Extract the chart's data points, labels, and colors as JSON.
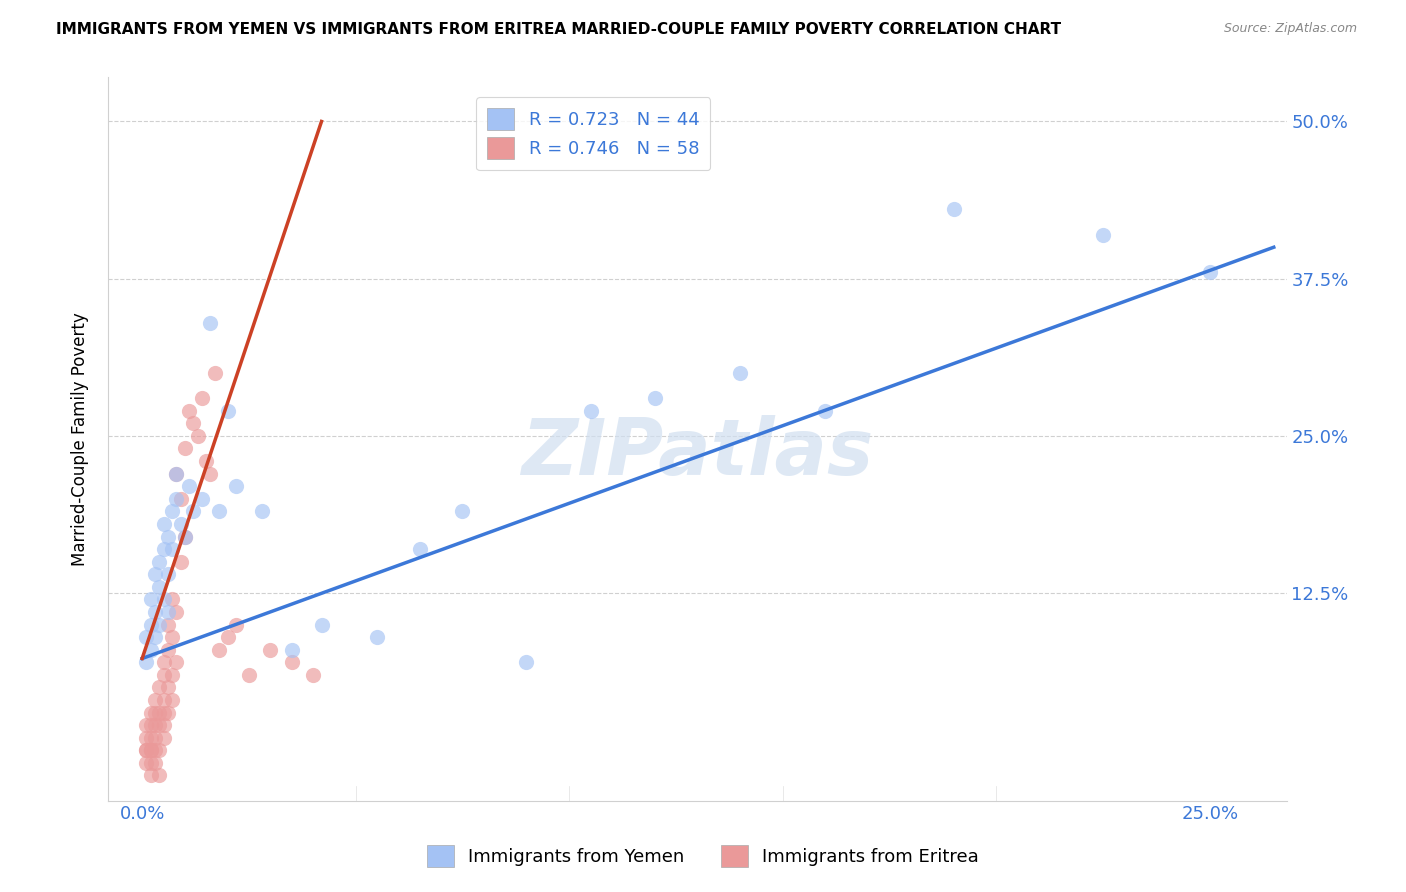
{
  "title": "IMMIGRANTS FROM YEMEN VS IMMIGRANTS FROM ERITREA MARRIED-COUPLE FAMILY POVERTY CORRELATION CHART",
  "source": "Source: ZipAtlas.com",
  "ylabel": "Married-Couple Family Poverty",
  "ytick_labels": [
    "12.5%",
    "25.0%",
    "37.5%",
    "50.0%"
  ],
  "ytick_values": [
    0.125,
    0.25,
    0.375,
    0.5
  ],
  "xtick_show": [
    0.0,
    0.25
  ],
  "xtick_labels_show": [
    "0.0%",
    "25.0%"
  ],
  "xlim": [
    -0.008,
    0.268
  ],
  "ylim": [
    -0.04,
    0.535
  ],
  "watermark": "ZIPatlas",
  "legend_blue_label": "R = 0.723   N = 44",
  "legend_pink_label": "R = 0.746   N = 58",
  "legend_bottom_blue": "Immigrants from Yemen",
  "legend_bottom_pink": "Immigrants from Eritrea",
  "blue_color": "#a4c2f4",
  "pink_color": "#ea9999",
  "blue_line_color": "#3c78d8",
  "pink_line_color": "#cc4125",
  "scatter_alpha": 0.65,
  "scatter_size": 120,
  "yemen_x": [
    0.001,
    0.001,
    0.002,
    0.002,
    0.002,
    0.003,
    0.003,
    0.003,
    0.004,
    0.004,
    0.004,
    0.005,
    0.005,
    0.005,
    0.006,
    0.006,
    0.006,
    0.007,
    0.007,
    0.008,
    0.008,
    0.009,
    0.01,
    0.011,
    0.012,
    0.014,
    0.016,
    0.018,
    0.02,
    0.022,
    0.028,
    0.035,
    0.042,
    0.055,
    0.065,
    0.075,
    0.09,
    0.105,
    0.12,
    0.14,
    0.16,
    0.19,
    0.225,
    0.25
  ],
  "yemen_y": [
    0.07,
    0.09,
    0.1,
    0.08,
    0.12,
    0.11,
    0.14,
    0.09,
    0.13,
    0.15,
    0.1,
    0.16,
    0.12,
    0.18,
    0.14,
    0.17,
    0.11,
    0.19,
    0.16,
    0.2,
    0.22,
    0.18,
    0.17,
    0.21,
    0.19,
    0.2,
    0.34,
    0.19,
    0.27,
    0.21,
    0.19,
    0.08,
    0.1,
    0.09,
    0.16,
    0.19,
    0.07,
    0.27,
    0.28,
    0.3,
    0.27,
    0.43,
    0.41,
    0.38
  ],
  "eritrea_x": [
    0.001,
    0.001,
    0.001,
    0.001,
    0.001,
    0.002,
    0.002,
    0.002,
    0.002,
    0.002,
    0.002,
    0.002,
    0.003,
    0.003,
    0.003,
    0.003,
    0.003,
    0.003,
    0.004,
    0.004,
    0.004,
    0.004,
    0.004,
    0.005,
    0.005,
    0.005,
    0.005,
    0.005,
    0.005,
    0.006,
    0.006,
    0.006,
    0.006,
    0.007,
    0.007,
    0.007,
    0.007,
    0.008,
    0.008,
    0.008,
    0.009,
    0.009,
    0.01,
    0.01,
    0.011,
    0.012,
    0.013,
    0.014,
    0.015,
    0.016,
    0.017,
    0.018,
    0.02,
    0.022,
    0.025,
    0.03,
    0.035,
    0.04
  ],
  "eritrea_y": [
    0.0,
    0.01,
    0.0,
    0.02,
    -0.01,
    0.01,
    0.0,
    -0.01,
    0.02,
    0.03,
    0.0,
    -0.02,
    0.01,
    0.03,
    0.02,
    0.04,
    0.0,
    -0.01,
    0.02,
    0.05,
    0.03,
    0.0,
    -0.02,
    0.06,
    0.04,
    0.02,
    0.07,
    0.03,
    0.01,
    0.08,
    0.05,
    0.03,
    0.1,
    0.09,
    0.06,
    0.04,
    0.12,
    0.11,
    0.07,
    0.22,
    0.2,
    0.15,
    0.17,
    0.24,
    0.27,
    0.26,
    0.25,
    0.28,
    0.23,
    0.22,
    0.3,
    0.08,
    0.09,
    0.1,
    0.06,
    0.08,
    0.07,
    0.06
  ],
  "blue_line_x": [
    0.0,
    0.265
  ],
  "blue_line_y": [
    0.073,
    0.4
  ],
  "pink_line_x": [
    0.0,
    0.042
  ],
  "pink_line_y": [
    0.073,
    0.5
  ]
}
